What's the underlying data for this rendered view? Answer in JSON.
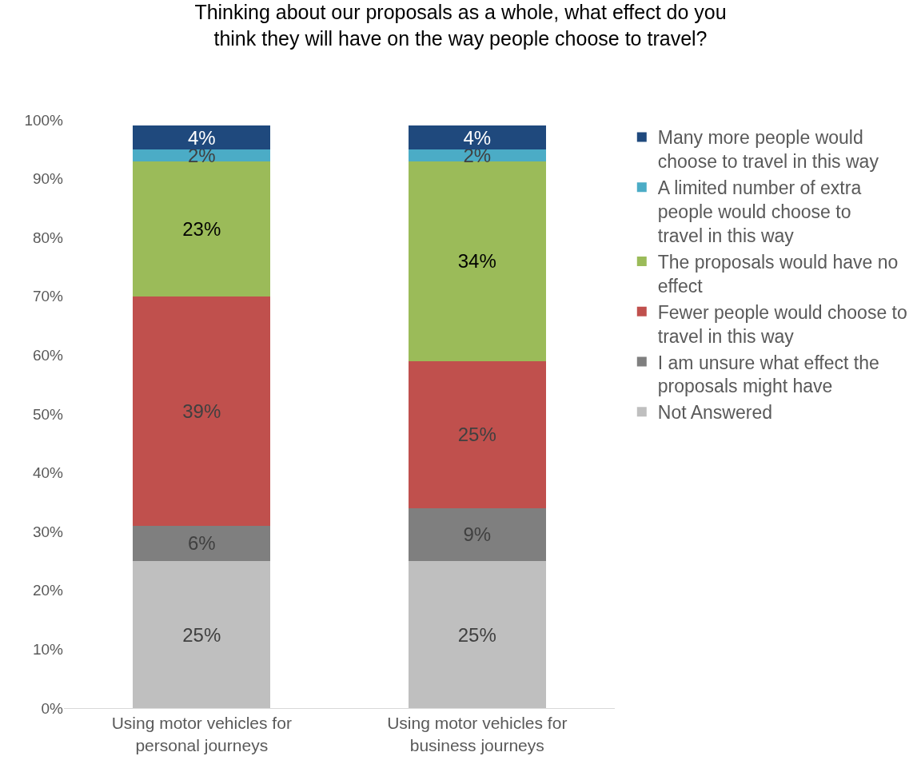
{
  "chart_data": {
    "type": "bar",
    "stacked": true,
    "title": "Thinking about our proposals as a whole, what effect do you think they will have on the way people choose to travel?",
    "categories": [
      "Using motor vehicles for personal journeys",
      "Using motor vehicles for business journeys"
    ],
    "series": [
      {
        "name": "Not Answered",
        "color": "#bfbfbf",
        "values": [
          25,
          25
        ],
        "value_labels": [
          "25%",
          "25%"
        ]
      },
      {
        "name": "I am unsure what effect the proposals might have",
        "color": "#7f7f7f",
        "values": [
          6,
          9
        ],
        "value_labels": [
          "6%",
          "9%"
        ]
      },
      {
        "name": "Fewer people would choose to travel in this way",
        "color": "#c0504d",
        "values": [
          39,
          25
        ],
        "value_labels": [
          "39%",
          "25%"
        ]
      },
      {
        "name": "The proposals would have no effect",
        "color": "#9bbb59",
        "values": [
          23,
          34
        ],
        "value_labels": [
          "23%",
          "34%"
        ]
      },
      {
        "name": "A limited number of extra people would choose to travel in this way",
        "color": "#4bacc6",
        "values": [
          2,
          2
        ],
        "value_labels": [
          "2%",
          "2%"
        ]
      },
      {
        "name": "Many more people would choose to travel in this way",
        "color": "#1f497d",
        "values": [
          4,
          4
        ],
        "value_labels": [
          "4%",
          "4%"
        ]
      }
    ],
    "ylim": [
      0,
      100
    ],
    "yticks": [
      {
        "value": 0,
        "label": "0%"
      },
      {
        "value": 10,
        "label": "10%"
      },
      {
        "value": 20,
        "label": "20%"
      },
      {
        "value": 30,
        "label": "30%"
      },
      {
        "value": 40,
        "label": "40%"
      },
      {
        "value": 50,
        "label": "50%"
      },
      {
        "value": 60,
        "label": "60%"
      },
      {
        "value": 70,
        "label": "70%"
      },
      {
        "value": 80,
        "label": "80%"
      },
      {
        "value": 90,
        "label": "90%"
      },
      {
        "value": 100,
        "label": "100%"
      }
    ],
    "legend": "right"
  }
}
